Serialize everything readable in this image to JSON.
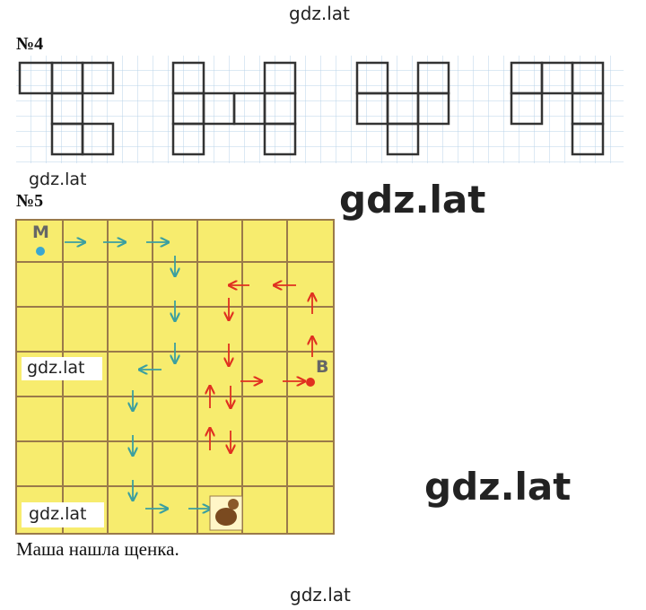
{
  "watermarks": [
    "gdz.lat",
    "gdz.lat",
    "gdz.lat",
    "gdz.lat",
    "gdz.lat",
    "gdz.lat",
    "gdz.lat"
  ],
  "task4": {
    "number": "№4"
  },
  "task5": {
    "number": "№5",
    "start_label": "М",
    "end_label": "В",
    "answer": "Маша нашла щенка."
  }
}
